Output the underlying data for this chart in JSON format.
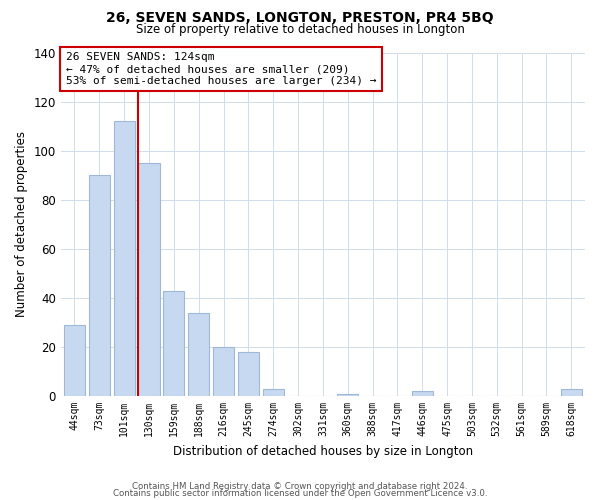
{
  "title": "26, SEVEN SANDS, LONGTON, PRESTON, PR4 5BQ",
  "subtitle": "Size of property relative to detached houses in Longton",
  "xlabel": "Distribution of detached houses by size in Longton",
  "ylabel": "Number of detached properties",
  "categories": [
    "44sqm",
    "73sqm",
    "101sqm",
    "130sqm",
    "159sqm",
    "188sqm",
    "216sqm",
    "245sqm",
    "274sqm",
    "302sqm",
    "331sqm",
    "360sqm",
    "388sqm",
    "417sqm",
    "446sqm",
    "475sqm",
    "503sqm",
    "532sqm",
    "561sqm",
    "589sqm",
    "618sqm"
  ],
  "values": [
    29,
    90,
    112,
    95,
    43,
    34,
    20,
    18,
    3,
    0,
    0,
    1,
    0,
    0,
    2,
    0,
    0,
    0,
    0,
    0,
    3
  ],
  "bar_color": "#c7d9f0",
  "bar_edge_color": "#a0b8d8",
  "vline_x_index": 3,
  "vline_color": "#cc0000",
  "annotation_line1": "26 SEVEN SANDS: 124sqm",
  "annotation_line2": "← 47% of detached houses are smaller (209)",
  "annotation_line3": "53% of semi-detached houses are larger (234) →",
  "annotation_box_color": "#ffffff",
  "annotation_box_edge": "#cc0000",
  "ylim": [
    0,
    140
  ],
  "yticks": [
    0,
    20,
    40,
    60,
    80,
    100,
    120,
    140
  ],
  "footer_line1": "Contains HM Land Registry data © Crown copyright and database right 2024.",
  "footer_line2": "Contains public sector information licensed under the Open Government Licence v3.0.",
  "background_color": "#ffffff",
  "grid_color": "#d0dce8"
}
